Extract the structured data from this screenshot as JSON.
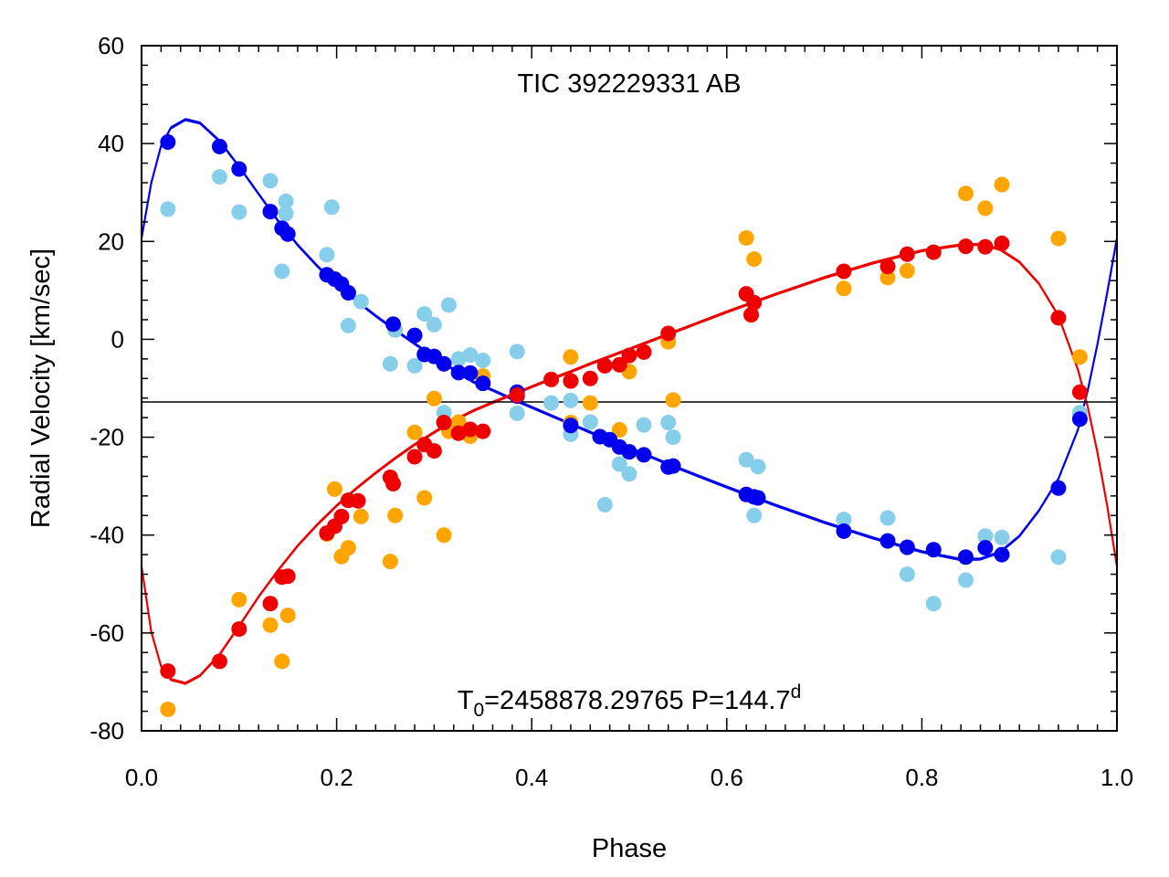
{
  "chart_data": {
    "type": "scatter",
    "title": "TIC 392229331 AB",
    "annotation": {
      "t0_label": "T",
      "t0_subscript": "0",
      "t0_value": "=2458878.29765 P=144.7",
      "period_unit": "d"
    },
    "xlabel": "Phase",
    "ylabel": "Radial Velocity [km/sec]",
    "xlim": [
      0.0,
      1.0
    ],
    "ylim": [
      -80,
      60
    ],
    "xticks": [
      "0.0",
      "0.2",
      "0.4",
      "0.6",
      "0.8",
      "1.0"
    ],
    "yticks": [
      "-80",
      "-60",
      "-40",
      "-20",
      "0",
      "20",
      "40",
      "60"
    ],
    "systemic_velocity": -12.8,
    "colors": {
      "primary": "#0000ee",
      "secondary": "#ee0000",
      "primary_alt": "#87ceeb",
      "secondary_alt": "#ffa500",
      "systemic_line": "#000000"
    },
    "series": [
      {
        "name": "Primary (dark blue)",
        "color": "#0000ee",
        "points": [
          [
            0.027,
            40.3
          ],
          [
            0.08,
            39.4
          ],
          [
            0.1,
            34.8
          ],
          [
            0.132,
            26.1
          ],
          [
            0.144,
            22.7
          ],
          [
            0.15,
            21.5
          ],
          [
            0.19,
            13.2
          ],
          [
            0.198,
            12.3
          ],
          [
            0.205,
            11.3
          ],
          [
            0.212,
            9.5
          ],
          [
            0.258,
            3.1
          ],
          [
            0.28,
            0.8
          ],
          [
            0.29,
            -3.1
          ],
          [
            0.3,
            -3.5
          ],
          [
            0.31,
            -5.0
          ],
          [
            0.325,
            -6.8
          ],
          [
            0.337,
            -6.9
          ],
          [
            0.35,
            -9.0
          ],
          [
            0.385,
            -11.6
          ],
          [
            0.385,
            -10.8
          ],
          [
            0.44,
            -17.6
          ],
          [
            0.47,
            -19.9
          ],
          [
            0.48,
            -20.5
          ],
          [
            0.49,
            -22.0
          ],
          [
            0.5,
            -23.0
          ],
          [
            0.515,
            -23.6
          ],
          [
            0.54,
            -26.1
          ],
          [
            0.545,
            -25.9
          ],
          [
            0.62,
            -31.7
          ],
          [
            0.628,
            -32.2
          ],
          [
            0.632,
            -32.4
          ],
          [
            0.72,
            -39.2
          ],
          [
            0.765,
            -41.2
          ],
          [
            0.785,
            -42.5
          ],
          [
            0.812,
            -43.0
          ],
          [
            0.845,
            -44.5
          ],
          [
            0.865,
            -42.6
          ],
          [
            0.882,
            -44.0
          ],
          [
            0.94,
            -30.4
          ],
          [
            0.962,
            -16.3
          ]
        ]
      },
      {
        "name": "Secondary (red)",
        "color": "#ee0000",
        "points": [
          [
            0.027,
            -67.8
          ],
          [
            0.08,
            -65.8
          ],
          [
            0.1,
            -59.2
          ],
          [
            0.132,
            -54.0
          ],
          [
            0.144,
            -48.6
          ],
          [
            0.15,
            -48.4
          ],
          [
            0.19,
            -39.6
          ],
          [
            0.198,
            -38.2
          ],
          [
            0.205,
            -36.2
          ],
          [
            0.212,
            -32.9
          ],
          [
            0.222,
            -33.0
          ],
          [
            0.255,
            -28.2
          ],
          [
            0.258,
            -29.5
          ],
          [
            0.28,
            -24.0
          ],
          [
            0.29,
            -21.5
          ],
          [
            0.3,
            -22.8
          ],
          [
            0.31,
            -17.0
          ],
          [
            0.325,
            -19.2
          ],
          [
            0.337,
            -18.4
          ],
          [
            0.35,
            -18.8
          ],
          [
            0.385,
            -11.4
          ],
          [
            0.42,
            -8.2
          ],
          [
            0.44,
            -8.5
          ],
          [
            0.46,
            -8.0
          ],
          [
            0.475,
            -5.4
          ],
          [
            0.49,
            -5.2
          ],
          [
            0.5,
            -3.3
          ],
          [
            0.515,
            -2.6
          ],
          [
            0.54,
            1.2
          ],
          [
            0.62,
            9.3
          ],
          [
            0.625,
            5.0
          ],
          [
            0.628,
            7.5
          ],
          [
            0.72,
            13.9
          ],
          [
            0.765,
            14.9
          ],
          [
            0.785,
            17.4
          ],
          [
            0.812,
            17.8
          ],
          [
            0.845,
            19.0
          ],
          [
            0.865,
            18.9
          ],
          [
            0.882,
            19.6
          ],
          [
            0.94,
            4.4
          ],
          [
            0.962,
            -10.8
          ]
        ]
      },
      {
        "name": "Primary (light blue)",
        "color": "#87ceeb",
        "points": [
          [
            0.027,
            26.6
          ],
          [
            0.08,
            33.2
          ],
          [
            0.1,
            26.0
          ],
          [
            0.132,
            32.4
          ],
          [
            0.144,
            13.9
          ],
          [
            0.148,
            28.2
          ],
          [
            0.148,
            25.7
          ],
          [
            0.19,
            17.3
          ],
          [
            0.195,
            27.0
          ],
          [
            0.212,
            2.8
          ],
          [
            0.225,
            7.7
          ],
          [
            0.255,
            -5.0
          ],
          [
            0.26,
            1.9
          ],
          [
            0.28,
            -5.4
          ],
          [
            0.29,
            5.2
          ],
          [
            0.3,
            3.0
          ],
          [
            0.31,
            -15.0
          ],
          [
            0.315,
            7.0
          ],
          [
            0.325,
            -4.0
          ],
          [
            0.337,
            -3.2
          ],
          [
            0.35,
            -4.3
          ],
          [
            0.385,
            -2.5
          ],
          [
            0.385,
            -15.1
          ],
          [
            0.42,
            -13.0
          ],
          [
            0.44,
            -12.5
          ],
          [
            0.44,
            -19.4
          ],
          [
            0.46,
            -16.9
          ],
          [
            0.475,
            -33.8
          ],
          [
            0.49,
            -25.5
          ],
          [
            0.5,
            -27.5
          ],
          [
            0.515,
            -17.5
          ],
          [
            0.54,
            -17.0
          ],
          [
            0.545,
            -20.0
          ],
          [
            0.62,
            -24.6
          ],
          [
            0.628,
            -36.0
          ],
          [
            0.632,
            -26.0
          ],
          [
            0.72,
            -36.8
          ],
          [
            0.765,
            -36.5
          ],
          [
            0.785,
            -48.0
          ],
          [
            0.812,
            -54.0
          ],
          [
            0.845,
            -49.2
          ],
          [
            0.865,
            -40.2
          ],
          [
            0.882,
            -40.5
          ],
          [
            0.94,
            -44.5
          ],
          [
            0.962,
            -15.0
          ]
        ]
      },
      {
        "name": "Secondary (orange)",
        "color": "#ffa500",
        "points": [
          [
            0.027,
            -75.6
          ],
          [
            0.1,
            -53.2
          ],
          [
            0.132,
            -58.4
          ],
          [
            0.144,
            -65.8
          ],
          [
            0.15,
            -56.4
          ],
          [
            0.19,
            -39.8
          ],
          [
            0.198,
            -30.6
          ],
          [
            0.205,
            -44.4
          ],
          [
            0.212,
            -42.6
          ],
          [
            0.225,
            -36.2
          ],
          [
            0.255,
            -45.4
          ],
          [
            0.26,
            -36.0
          ],
          [
            0.28,
            -19.0
          ],
          [
            0.29,
            -32.4
          ],
          [
            0.3,
            -12.1
          ],
          [
            0.315,
            -18.8
          ],
          [
            0.325,
            -16.9
          ],
          [
            0.31,
            -40.0
          ],
          [
            0.337,
            -19.8
          ],
          [
            0.35,
            -7.5
          ],
          [
            0.44,
            -3.6
          ],
          [
            0.44,
            -8.5
          ],
          [
            0.44,
            -17.0
          ],
          [
            0.46,
            -13.0
          ],
          [
            0.49,
            -18.5
          ],
          [
            0.5,
            -6.6
          ],
          [
            0.54,
            -0.5
          ],
          [
            0.545,
            -12.4
          ],
          [
            0.62,
            20.7
          ],
          [
            0.628,
            16.4
          ],
          [
            0.72,
            10.4
          ],
          [
            0.765,
            12.6
          ],
          [
            0.785,
            14.0
          ],
          [
            0.845,
            29.8
          ],
          [
            0.865,
            26.8
          ],
          [
            0.882,
            31.6
          ],
          [
            0.94,
            20.6
          ],
          [
            0.962,
            -3.6
          ]
        ]
      }
    ],
    "model_curves": [
      {
        "name": "Primary orbit fit",
        "color": "#0000ee",
        "points": [
          [
            0.0,
            20.7
          ],
          [
            0.01,
            32.0
          ],
          [
            0.02,
            39.5
          ],
          [
            0.03,
            43.2
          ],
          [
            0.045,
            44.9
          ],
          [
            0.06,
            44.2
          ],
          [
            0.08,
            40.5
          ],
          [
            0.1,
            35.3
          ],
          [
            0.12,
            29.7
          ],
          [
            0.14,
            24.2
          ],
          [
            0.16,
            19.3
          ],
          [
            0.18,
            15.0
          ],
          [
            0.2,
            11.2
          ],
          [
            0.22,
            7.9
          ],
          [
            0.24,
            4.8
          ],
          [
            0.26,
            1.9
          ],
          [
            0.28,
            -0.9
          ],
          [
            0.3,
            -3.6
          ],
          [
            0.32,
            -6.2
          ],
          [
            0.34,
            -8.7
          ],
          [
            0.36,
            -10.4
          ],
          [
            0.38,
            -12.2
          ],
          [
            0.4,
            -13.9
          ],
          [
            0.42,
            -15.6
          ],
          [
            0.44,
            -17.3
          ],
          [
            0.46,
            -19.0
          ],
          [
            0.48,
            -20.6
          ],
          [
            0.5,
            -22.2
          ],
          [
            0.55,
            -26.3
          ],
          [
            0.6,
            -30.2
          ],
          [
            0.65,
            -33.9
          ],
          [
            0.7,
            -37.4
          ],
          [
            0.75,
            -40.6
          ],
          [
            0.8,
            -43.4
          ],
          [
            0.84,
            -45.0
          ],
          [
            0.86,
            -44.9
          ],
          [
            0.88,
            -43.5
          ],
          [
            0.9,
            -40.2
          ],
          [
            0.92,
            -35.0
          ],
          [
            0.94,
            -28.5
          ],
          [
            0.96,
            -18.5
          ],
          [
            0.97,
            -10.5
          ],
          [
            0.98,
            -1.0
          ],
          [
            0.99,
            9.5
          ],
          [
            1.0,
            20.7
          ]
        ]
      },
      {
        "name": "Secondary orbit fit",
        "color": "#ee0000",
        "points": [
          [
            0.0,
            -46.4
          ],
          [
            0.01,
            -59.8
          ],
          [
            0.02,
            -66.8
          ],
          [
            0.03,
            -69.5
          ],
          [
            0.045,
            -70.3
          ],
          [
            0.06,
            -68.7
          ],
          [
            0.08,
            -64.4
          ],
          [
            0.1,
            -58.6
          ],
          [
            0.12,
            -52.6
          ],
          [
            0.14,
            -47.2
          ],
          [
            0.16,
            -42.2
          ],
          [
            0.18,
            -37.9
          ],
          [
            0.2,
            -34.0
          ],
          [
            0.22,
            -30.5
          ],
          [
            0.24,
            -27.3
          ],
          [
            0.26,
            -24.3
          ],
          [
            0.28,
            -21.5
          ],
          [
            0.3,
            -19.0
          ],
          [
            0.32,
            -16.6
          ],
          [
            0.34,
            -14.6
          ],
          [
            0.36,
            -12.9
          ],
          [
            0.38,
            -11.3
          ],
          [
            0.4,
            -9.7
          ],
          [
            0.42,
            -8.1
          ],
          [
            0.44,
            -6.6
          ],
          [
            0.46,
            -5.0
          ],
          [
            0.48,
            -3.5
          ],
          [
            0.5,
            -2.0
          ],
          [
            0.55,
            1.8
          ],
          [
            0.6,
            5.6
          ],
          [
            0.65,
            9.2
          ],
          [
            0.7,
            12.6
          ],
          [
            0.75,
            15.6
          ],
          [
            0.8,
            18.1
          ],
          [
            0.84,
            19.3
          ],
          [
            0.86,
            19.4
          ],
          [
            0.88,
            18.4
          ],
          [
            0.9,
            15.8
          ],
          [
            0.92,
            11.4
          ],
          [
            0.94,
            4.8
          ],
          [
            0.96,
            -6.2
          ],
          [
            0.97,
            -13.7
          ],
          [
            0.98,
            -23.1
          ],
          [
            0.99,
            -34.0
          ],
          [
            1.0,
            -46.4
          ]
        ]
      }
    ]
  }
}
